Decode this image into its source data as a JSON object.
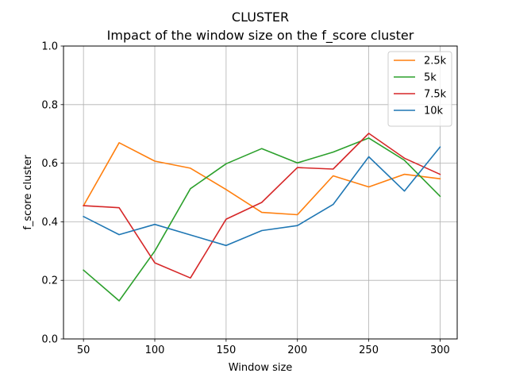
{
  "chart_data": {
    "type": "line",
    "title": "CLUSTER",
    "subtitle": "Impact of the window size on the f_score cluster",
    "xlabel": "Window size",
    "ylabel": "f_score cluster",
    "x": [
      50,
      75,
      100,
      125,
      150,
      175,
      200,
      225,
      250,
      275,
      300
    ],
    "xticks": [
      50,
      100,
      150,
      200,
      250,
      300
    ],
    "yticks": [
      "0.0",
      "0.2",
      "0.4",
      "0.6",
      "0.8",
      "1.0"
    ],
    "xlim": [
      36,
      312
    ],
    "ylim": [
      0,
      1.0
    ],
    "grid": true,
    "legend_position": "top-right",
    "series": [
      {
        "name": "2.5k",
        "color": "#ff7f0e",
        "values": [
          0.455,
          0.67,
          0.607,
          0.583,
          0.51,
          0.432,
          0.424,
          0.557,
          0.519,
          0.562,
          0.547
        ]
      },
      {
        "name": "5k",
        "color": "#2ca02c",
        "values": [
          0.235,
          0.13,
          0.3,
          0.513,
          0.598,
          0.65,
          0.601,
          0.638,
          0.686,
          0.61,
          0.487
        ]
      },
      {
        "name": "7.5k",
        "color": "#d62728",
        "values": [
          0.455,
          0.448,
          0.26,
          0.208,
          0.409,
          0.466,
          0.585,
          0.58,
          0.702,
          0.617,
          0.562
        ]
      },
      {
        "name": "10k",
        "color": "#1f77b4",
        "values": [
          0.418,
          0.356,
          0.391,
          0.355,
          0.319,
          0.37,
          0.387,
          0.459,
          0.622,
          0.505,
          0.655
        ]
      }
    ]
  }
}
